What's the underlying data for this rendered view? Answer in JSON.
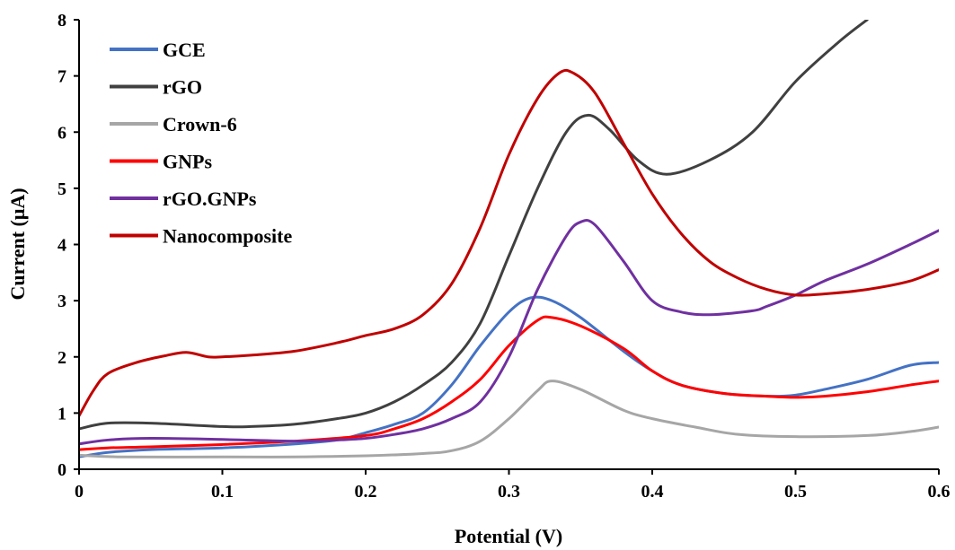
{
  "chart_data": {
    "type": "line",
    "title": "",
    "xlabel": "Potential (V)",
    "ylabel": "Current (μA)",
    "xlim": [
      0,
      0.6
    ],
    "ylim": [
      0,
      8
    ],
    "x_ticks": [
      0,
      0.1,
      0.2,
      0.3,
      0.4,
      0.5,
      0.6
    ],
    "y_ticks": [
      0,
      1,
      2,
      3,
      4,
      5,
      6,
      7,
      8
    ],
    "x_tick_labels": [
      "0",
      "0.1",
      "0.2",
      "0.3",
      "0.4",
      "0.5",
      "0.6"
    ],
    "y_tick_labels": [
      "0",
      "1",
      "2",
      "3",
      "4",
      "5",
      "6",
      "7",
      "8"
    ],
    "grid": false,
    "legend_position": "top-left",
    "series": [
      {
        "name": "GCE",
        "color": "#4472C4",
        "points": [
          [
            0,
            0.22
          ],
          [
            0.02,
            0.3
          ],
          [
            0.05,
            0.35
          ],
          [
            0.1,
            0.38
          ],
          [
            0.15,
            0.45
          ],
          [
            0.18,
            0.52
          ],
          [
            0.2,
            0.65
          ],
          [
            0.22,
            0.8
          ],
          [
            0.24,
            1.0
          ],
          [
            0.26,
            1.5
          ],
          [
            0.28,
            2.2
          ],
          [
            0.3,
            2.8
          ],
          [
            0.315,
            3.05
          ],
          [
            0.33,
            3.0
          ],
          [
            0.35,
            2.7
          ],
          [
            0.38,
            2.1
          ],
          [
            0.4,
            1.75
          ],
          [
            0.42,
            1.5
          ],
          [
            0.45,
            1.35
          ],
          [
            0.48,
            1.3
          ],
          [
            0.5,
            1.32
          ],
          [
            0.52,
            1.42
          ],
          [
            0.55,
            1.6
          ],
          [
            0.58,
            1.85
          ],
          [
            0.6,
            1.9
          ]
        ]
      },
      {
        "name": "rGO",
        "color": "#404040",
        "points": [
          [
            0,
            0.72
          ],
          [
            0.02,
            0.82
          ],
          [
            0.05,
            0.82
          ],
          [
            0.1,
            0.76
          ],
          [
            0.12,
            0.76
          ],
          [
            0.15,
            0.8
          ],
          [
            0.18,
            0.9
          ],
          [
            0.2,
            1.0
          ],
          [
            0.22,
            1.2
          ],
          [
            0.24,
            1.5
          ],
          [
            0.26,
            1.9
          ],
          [
            0.28,
            2.6
          ],
          [
            0.3,
            3.8
          ],
          [
            0.32,
            5.0
          ],
          [
            0.34,
            6.0
          ],
          [
            0.355,
            6.3
          ],
          [
            0.37,
            6.05
          ],
          [
            0.39,
            5.5
          ],
          [
            0.41,
            5.25
          ],
          [
            0.44,
            5.5
          ],
          [
            0.47,
            6.0
          ],
          [
            0.5,
            6.9
          ],
          [
            0.53,
            7.6
          ],
          [
            0.55,
            8.0
          ]
        ]
      },
      {
        "name": "Crown-6",
        "color": "#A6A6A6",
        "points": [
          [
            0,
            0.25
          ],
          [
            0.03,
            0.22
          ],
          [
            0.1,
            0.22
          ],
          [
            0.15,
            0.22
          ],
          [
            0.2,
            0.24
          ],
          [
            0.24,
            0.28
          ],
          [
            0.26,
            0.33
          ],
          [
            0.28,
            0.5
          ],
          [
            0.3,
            0.9
          ],
          [
            0.32,
            1.4
          ],
          [
            0.33,
            1.57
          ],
          [
            0.35,
            1.42
          ],
          [
            0.38,
            1.05
          ],
          [
            0.4,
            0.9
          ],
          [
            0.43,
            0.75
          ],
          [
            0.46,
            0.62
          ],
          [
            0.5,
            0.58
          ],
          [
            0.55,
            0.6
          ],
          [
            0.58,
            0.67
          ],
          [
            0.6,
            0.75
          ]
        ]
      },
      {
        "name": "GNPs",
        "color": "#FF0000",
        "points": [
          [
            0,
            0.35
          ],
          [
            0.02,
            0.38
          ],
          [
            0.05,
            0.4
          ],
          [
            0.1,
            0.44
          ],
          [
            0.15,
            0.5
          ],
          [
            0.2,
            0.6
          ],
          [
            0.22,
            0.72
          ],
          [
            0.24,
            0.9
          ],
          [
            0.26,
            1.2
          ],
          [
            0.28,
            1.6
          ],
          [
            0.3,
            2.2
          ],
          [
            0.32,
            2.65
          ],
          [
            0.33,
            2.7
          ],
          [
            0.35,
            2.55
          ],
          [
            0.38,
            2.15
          ],
          [
            0.4,
            1.75
          ],
          [
            0.42,
            1.5
          ],
          [
            0.45,
            1.35
          ],
          [
            0.48,
            1.3
          ],
          [
            0.5,
            1.28
          ],
          [
            0.52,
            1.3
          ],
          [
            0.55,
            1.38
          ],
          [
            0.58,
            1.5
          ],
          [
            0.6,
            1.57
          ]
        ]
      },
      {
        "name": "rGO.GNPs",
        "color": "#7030A0",
        "points": [
          [
            0,
            0.45
          ],
          [
            0.02,
            0.52
          ],
          [
            0.05,
            0.55
          ],
          [
            0.1,
            0.53
          ],
          [
            0.15,
            0.5
          ],
          [
            0.18,
            0.52
          ],
          [
            0.2,
            0.55
          ],
          [
            0.22,
            0.62
          ],
          [
            0.24,
            0.72
          ],
          [
            0.26,
            0.9
          ],
          [
            0.28,
            1.2
          ],
          [
            0.3,
            2.0
          ],
          [
            0.32,
            3.2
          ],
          [
            0.34,
            4.15
          ],
          [
            0.35,
            4.4
          ],
          [
            0.36,
            4.35
          ],
          [
            0.38,
            3.7
          ],
          [
            0.4,
            3.0
          ],
          [
            0.42,
            2.8
          ],
          [
            0.44,
            2.75
          ],
          [
            0.47,
            2.82
          ],
          [
            0.48,
            2.9
          ],
          [
            0.5,
            3.1
          ],
          [
            0.52,
            3.35
          ],
          [
            0.55,
            3.65
          ],
          [
            0.58,
            4.0
          ],
          [
            0.6,
            4.25
          ]
        ]
      },
      {
        "name": "Nanocomposite",
        "color": "#C00000",
        "points": [
          [
            0,
            0.95
          ],
          [
            0.01,
            1.4
          ],
          [
            0.02,
            1.7
          ],
          [
            0.04,
            1.9
          ],
          [
            0.06,
            2.02
          ],
          [
            0.075,
            2.08
          ],
          [
            0.09,
            2.0
          ],
          [
            0.1,
            2.0
          ],
          [
            0.12,
            2.03
          ],
          [
            0.15,
            2.1
          ],
          [
            0.18,
            2.25
          ],
          [
            0.2,
            2.38
          ],
          [
            0.22,
            2.5
          ],
          [
            0.24,
            2.75
          ],
          [
            0.26,
            3.3
          ],
          [
            0.28,
            4.3
          ],
          [
            0.3,
            5.6
          ],
          [
            0.32,
            6.6
          ],
          [
            0.335,
            7.05
          ],
          [
            0.345,
            7.05
          ],
          [
            0.36,
            6.7
          ],
          [
            0.38,
            5.8
          ],
          [
            0.4,
            4.9
          ],
          [
            0.42,
            4.2
          ],
          [
            0.44,
            3.7
          ],
          [
            0.46,
            3.4
          ],
          [
            0.48,
            3.2
          ],
          [
            0.5,
            3.1
          ],
          [
            0.52,
            3.12
          ],
          [
            0.55,
            3.2
          ],
          [
            0.58,
            3.35
          ],
          [
            0.6,
            3.55
          ]
        ]
      }
    ]
  }
}
